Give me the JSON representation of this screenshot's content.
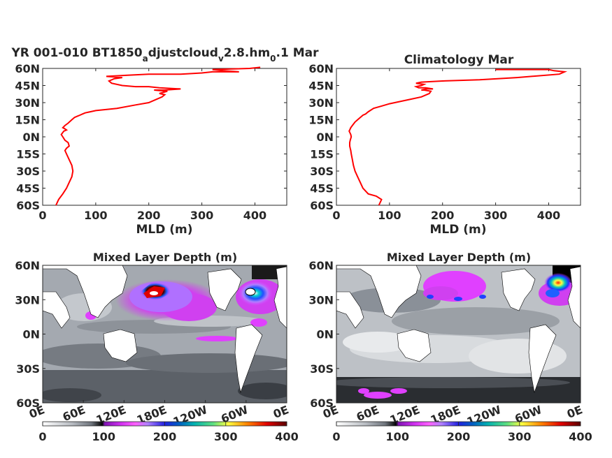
{
  "chart_data": [
    {
      "type": "line",
      "title_main": "YR 001-010 BT1850",
      "title_sub1": "a",
      "title_mid": "djustcloud",
      "title_sub2": "v",
      "title_mid2": "2.8.hm",
      "title_sub3": "0",
      "title_end": ".1 Mar",
      "xlabel": "MLD (m)",
      "xlim": [
        0,
        460
      ],
      "ylim": [
        -60,
        60
      ],
      "xticks": [
        "0",
        "100",
        "200",
        "300",
        "400"
      ],
      "yticks": [
        "60N",
        "45N",
        "30N",
        "15N",
        "0N",
        "15S",
        "30S",
        "45S",
        "60S"
      ],
      "color": "#ff0000",
      "x": [
        25,
        30,
        38,
        45,
        50,
        55,
        57,
        55,
        50,
        45,
        42,
        45,
        50,
        48,
        42,
        38,
        35,
        40,
        45,
        42,
        38,
        42,
        48,
        55,
        60,
        65,
        70,
        75,
        80,
        100,
        140,
        175,
        200,
        215,
        225,
        230,
        220,
        235,
        210,
        215,
        230,
        260,
        220,
        200,
        175,
        150,
        130,
        125,
        135,
        150,
        120,
        160,
        200,
        260,
        300,
        320,
        370,
        340,
        320,
        390,
        410
      ],
      "y": [
        -60,
        -55,
        -50,
        -45,
        -40,
        -35,
        -30,
        -25,
        -20,
        -15,
        -12,
        -10,
        -8,
        -5,
        -3,
        0,
        2,
        5,
        6,
        7,
        8,
        10,
        12,
        15,
        17,
        18,
        19,
        20,
        21,
        23,
        25,
        28,
        30,
        33,
        35,
        37,
        38,
        40,
        41,
        41,
        41,
        42,
        43,
        44,
        44,
        45,
        47,
        49,
        51,
        52,
        53,
        54,
        55,
        55,
        56,
        57,
        57,
        58,
        59,
        60,
        61
      ]
    },
    {
      "type": "line",
      "title": "Climatology Mar",
      "xlabel": "MLD (m)",
      "xlim": [
        0,
        460
      ],
      "ylim": [
        -60,
        60
      ],
      "xticks": [
        "0",
        "100",
        "200",
        "300",
        "400"
      ],
      "yticks": [
        "60N",
        "45N",
        "30N",
        "15N",
        "0N",
        "15S",
        "30S",
        "45S",
        "60S"
      ],
      "color": "#ff0000",
      "x": [
        80,
        85,
        75,
        60,
        50,
        45,
        40,
        35,
        32,
        30,
        28,
        27,
        26,
        25,
        25,
        26,
        28,
        27,
        25,
        24,
        25,
        27,
        30,
        35,
        40,
        45,
        50,
        55,
        60,
        70,
        85,
        100,
        120,
        140,
        160,
        175,
        178,
        165,
        160,
        170,
        182,
        168,
        155,
        150,
        160,
        165,
        150,
        160,
        200,
        270,
        340,
        420,
        430,
        410,
        400,
        350,
        300
      ],
      "y": [
        -60,
        -55,
        -52,
        -50,
        -45,
        -40,
        -35,
        -30,
        -25,
        -20,
        -15,
        -12,
        -10,
        -8,
        -5,
        -3,
        0,
        2,
        4,
        5,
        6,
        8,
        10,
        13,
        15,
        17,
        19,
        20,
        22,
        25,
        27,
        29,
        31,
        33,
        35,
        38,
        40,
        41,
        41,
        42,
        42,
        43,
        43,
        44,
        45,
        46,
        47,
        48,
        49,
        50,
        52,
        55,
        57,
        58,
        59,
        59,
        59
      ]
    },
    {
      "type": "heatmap",
      "title": "Mixed Layer Depth (m)",
      "xtick_labels": [
        "0E",
        "60E",
        "120E",
        "180E",
        "120W",
        "60W",
        "0E"
      ],
      "ytick_labels": [
        "60N",
        "30N",
        "0N",
        "30S",
        "60S"
      ],
      "ylim": [
        -60,
        60
      ],
      "colorbar": {
        "ticks": [
          "0",
          "100",
          "200",
          "300",
          "400"
        ],
        "range": [
          0,
          400
        ]
      }
    },
    {
      "type": "heatmap",
      "title": "Mixed Layer Depth (m)",
      "xtick_labels": [
        "0E",
        "60E",
        "120E",
        "180E",
        "120W",
        "60W",
        "0E"
      ],
      "ytick_labels": [
        "60N",
        "30N",
        "0N",
        "30S",
        "60S"
      ],
      "ylim": [
        -60,
        60
      ],
      "colorbar": {
        "ticks": [
          "0",
          "100",
          "200",
          "300",
          "400"
        ],
        "range": [
          0,
          400
        ]
      }
    }
  ],
  "colors": {
    "line": "#ff0000",
    "land": "#ffffff",
    "colormap": [
      "#ffffff",
      "#c8ccd0",
      "#8a9098",
      "#404448",
      "#000000",
      "#7a10b0",
      "#e040ff",
      "#ff60ff",
      "#a0a0ff",
      "#4040ff",
      "#0020b0",
      "#00b0b0",
      "#40e0a0",
      "#ffff40",
      "#ff8000",
      "#e00000",
      "#600000"
    ]
  }
}
